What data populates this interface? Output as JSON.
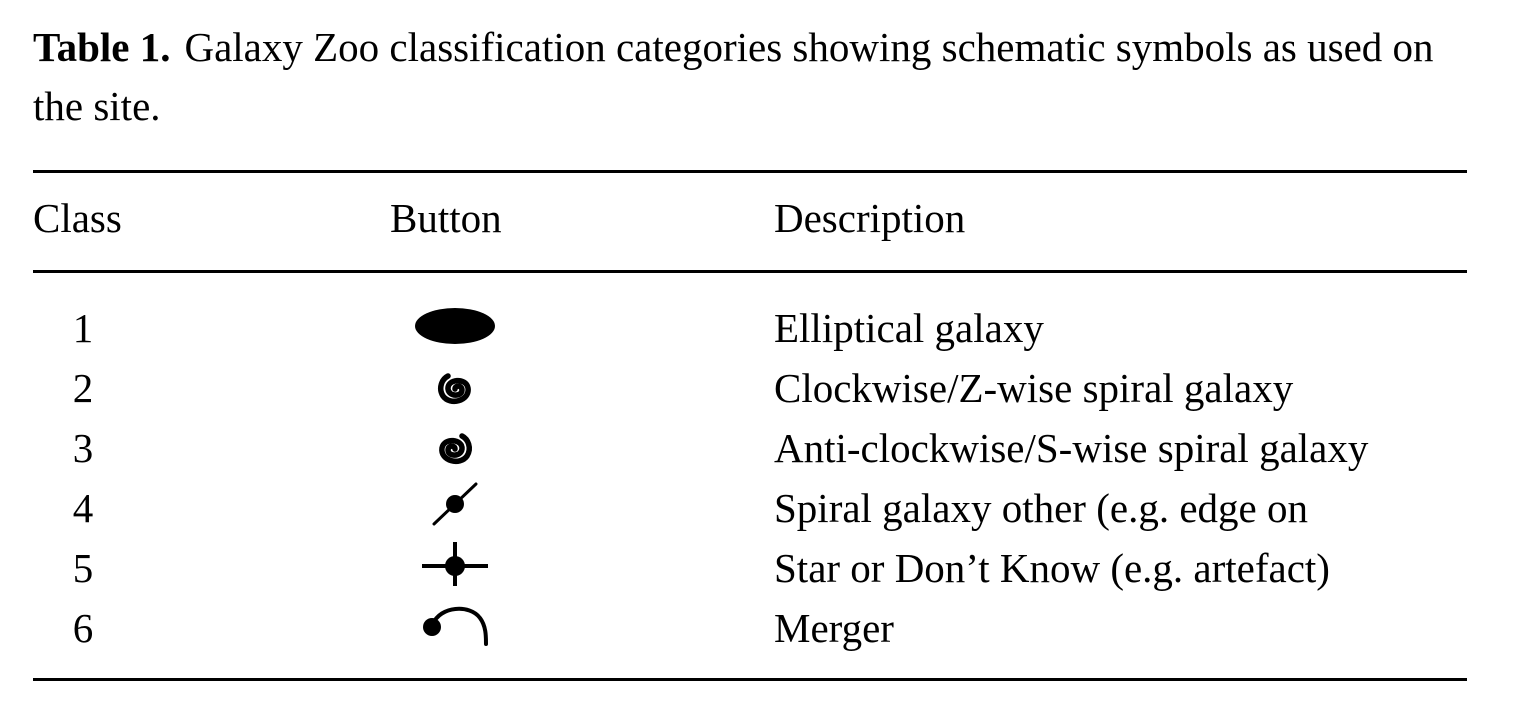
{
  "caption": {
    "label": "Table 1.",
    "text": "Galaxy Zoo classification categories showing schematic symbols as used on the site."
  },
  "table": {
    "headers": {
      "class": "Class",
      "button": "Button",
      "description": "Description"
    },
    "rows": [
      {
        "class": "1",
        "icon": "elliptical-galaxy-icon",
        "description": "Elliptical galaxy"
      },
      {
        "class": "2",
        "icon": "clockwise-spiral-icon",
        "description": "Clockwise/Z-wise spiral galaxy"
      },
      {
        "class": "3",
        "icon": "anticlockwise-spiral-icon",
        "description": "Anti-clockwise/S-wise spiral galaxy"
      },
      {
        "class": "4",
        "icon": "edge-on-spiral-icon",
        "description": "Spiral galaxy other (e.g. edge on"
      },
      {
        "class": "5",
        "icon": "star-icon",
        "description": "Star or Don’t Know (e.g. artefact)"
      },
      {
        "class": "6",
        "icon": "merger-icon",
        "description": "Merger"
      }
    ]
  }
}
